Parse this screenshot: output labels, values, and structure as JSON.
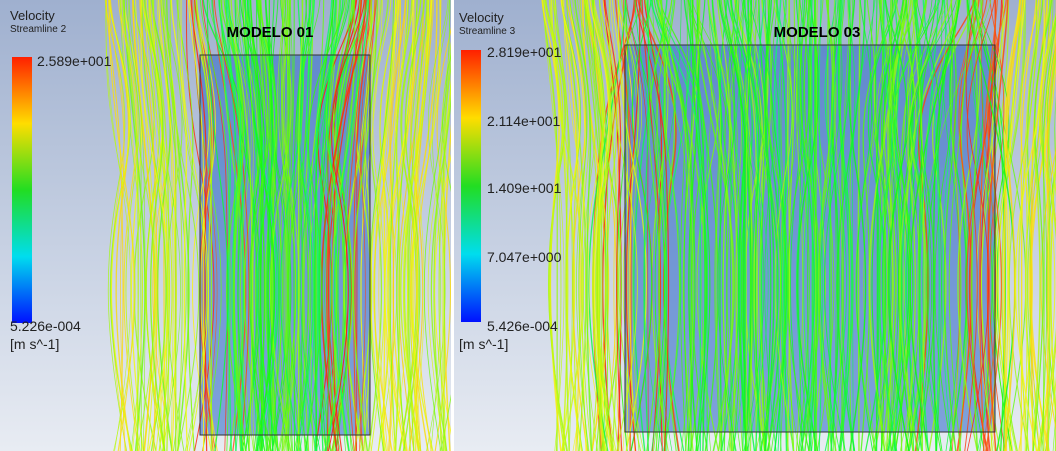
{
  "panels": [
    {
      "title": "MODELO 01",
      "legend": {
        "title": "Velocity",
        "subtitle": "Streamline 2",
        "labels": [
          "2.589e+001",
          "5.226e-004"
        ],
        "unit": "[m s^-1]"
      }
    },
    {
      "title": "MODELO 03",
      "legend": {
        "title": "Velocity",
        "subtitle": "Streamline 3",
        "labels": [
          "2.819e+001",
          "2.114e+001",
          "1.409e+001",
          "7.047e+000",
          "5.426e-004"
        ],
        "unit": "[m s^-1]"
      }
    }
  ]
}
